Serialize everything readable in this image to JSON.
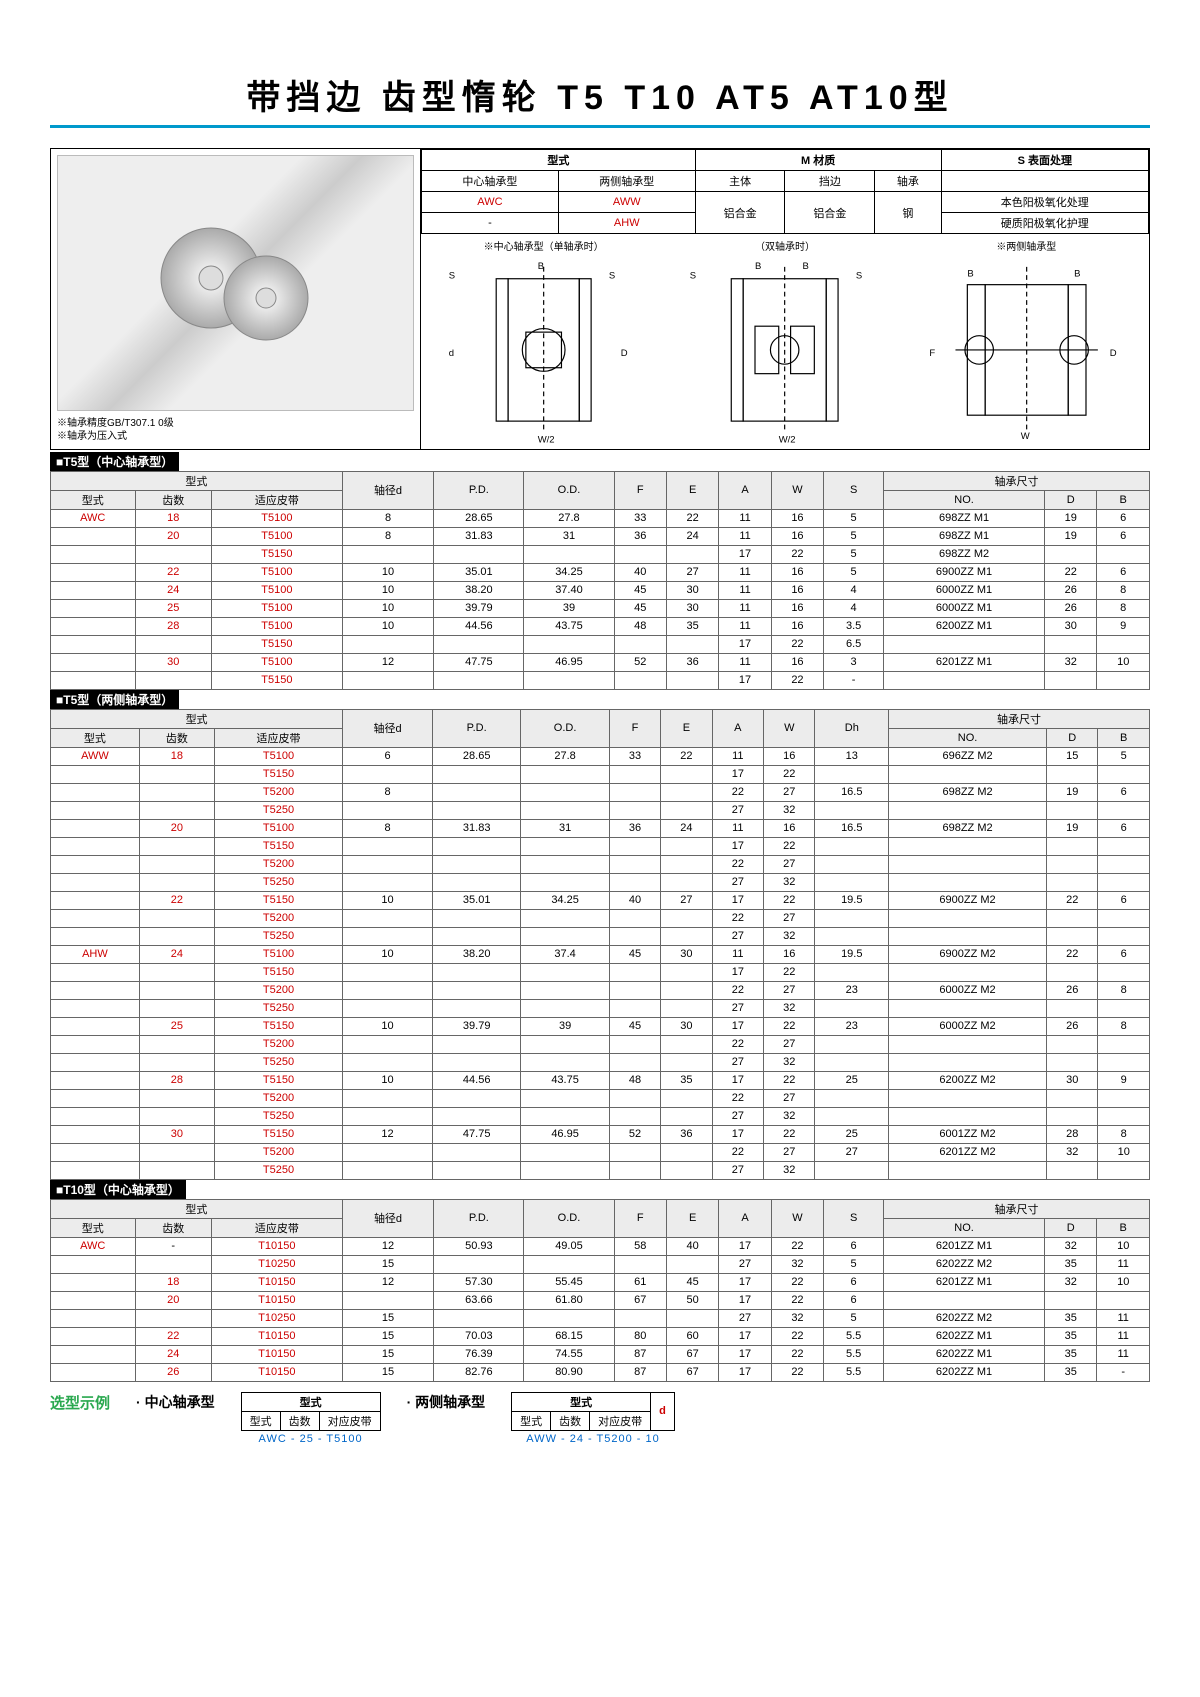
{
  "title": "带挡边 齿型惰轮 T5 T10 AT5 AT10型",
  "photo_notes": [
    "※轴承精度GB/T307.1  0级",
    "※轴承为压入式"
  ],
  "meta": {
    "cols": [
      "型式",
      "M 材质",
      "S 表面处理"
    ],
    "sub1": [
      "中心轴承型",
      "两侧轴承型",
      "主体",
      "挡边",
      "轴承",
      ""
    ],
    "rows": [
      [
        "AWC",
        "AWW",
        "铝合金",
        "铝合金",
        "钢",
        "本色阳极氧化处理"
      ],
      [
        "-",
        "AHW",
        "",
        "",
        "",
        "硬质阳极氧化护理"
      ]
    ]
  },
  "diagram_labels": [
    "※中心轴承型（单轴承时）",
    "（双轴承时）",
    "※两侧轴承型"
  ],
  "sections": [
    {
      "heading": "■T5型（中心轴承型）",
      "head1": [
        "型式",
        "",
        "",
        "",
        "",
        "",
        "",
        "",
        "",
        "轴承尺寸",
        "",
        ""
      ],
      "head2": [
        "型式",
        "齿数",
        "适应皮带",
        "轴径d",
        "P.D.",
        "O.D.",
        "F",
        "E",
        "A",
        "W",
        "S",
        "NO.",
        "D",
        "B"
      ],
      "rows": [
        [
          "AWC",
          "18",
          "T5100",
          "8",
          "28.65",
          "27.8",
          "33",
          "22",
          "11",
          "16",
          "5",
          "698ZZ  M1",
          "19",
          "6"
        ],
        [
          "",
          "20",
          "T5100",
          "8",
          "31.83",
          "31",
          "36",
          "24",
          "11",
          "16",
          "5",
          "698ZZ  M1",
          "19",
          "6"
        ],
        [
          "",
          "",
          "T5150",
          "",
          "",
          "",
          "",
          "",
          "17",
          "22",
          "5",
          "698ZZ  M2",
          "",
          ""
        ],
        [
          "",
          "22",
          "T5100",
          "10",
          "35.01",
          "34.25",
          "40",
          "27",
          "11",
          "16",
          "5",
          "6900ZZ M1",
          "22",
          "6"
        ],
        [
          "",
          "24",
          "T5100",
          "10",
          "38.20",
          "37.40",
          "45",
          "30",
          "11",
          "16",
          "4",
          "6000ZZ M1",
          "26",
          "8"
        ],
        [
          "",
          "25",
          "T5100",
          "10",
          "39.79",
          "39",
          "45",
          "30",
          "11",
          "16",
          "4",
          "6000ZZ M1",
          "26",
          "8"
        ],
        [
          "",
          "28",
          "T5100",
          "10",
          "44.56",
          "43.75",
          "48",
          "35",
          "11",
          "16",
          "3.5",
          "6200ZZ M1",
          "30",
          "9"
        ],
        [
          "",
          "",
          "T5150",
          "",
          "",
          "",
          "",
          "",
          "17",
          "22",
          "6.5",
          "",
          "",
          ""
        ],
        [
          "",
          "30",
          "T5100",
          "12",
          "47.75",
          "46.95",
          "52",
          "36",
          "11",
          "16",
          "3",
          "6201ZZ M1",
          "32",
          "10"
        ],
        [
          "",
          "",
          "T5150",
          "",
          "",
          "",
          "",
          "",
          "17",
          "22",
          "-",
          "",
          "",
          ""
        ]
      ]
    },
    {
      "heading": "■T5型（两侧轴承型）",
      "head2": [
        "型式",
        "齿数",
        "适应皮带",
        "轴径d",
        "P.D.",
        "O.D.",
        "F",
        "E",
        "A",
        "W",
        "Dh",
        "NO.",
        "D",
        "B"
      ],
      "rows": [
        [
          "AWW",
          "18",
          "T5100",
          "6",
          "28.65",
          "27.8",
          "33",
          "22",
          "11",
          "16",
          "13",
          "696ZZ  M2",
          "15",
          "5"
        ],
        [
          "",
          "",
          "T5150",
          "",
          "",
          "",
          "",
          "",
          "17",
          "22",
          "",
          "",
          "",
          ""
        ],
        [
          "",
          "",
          "T5200",
          "8",
          "",
          "",
          "",
          "",
          "22",
          "27",
          "16.5",
          "698ZZ  M2",
          "19",
          "6"
        ],
        [
          "",
          "",
          "T5250",
          "",
          "",
          "",
          "",
          "",
          "27",
          "32",
          "",
          "",
          "",
          ""
        ],
        [
          "",
          "20",
          "T5100",
          "8",
          "31.83",
          "31",
          "36",
          "24",
          "11",
          "16",
          "16.5",
          "698ZZ  M2",
          "19",
          "6"
        ],
        [
          "",
          "",
          "T5150",
          "",
          "",
          "",
          "",
          "",
          "17",
          "22",
          "",
          "",
          "",
          ""
        ],
        [
          "",
          "",
          "T5200",
          "",
          "",
          "",
          "",
          "",
          "22",
          "27",
          "",
          "",
          "",
          ""
        ],
        [
          "",
          "",
          "T5250",
          "",
          "",
          "",
          "",
          "",
          "27",
          "32",
          "",
          "",
          "",
          ""
        ],
        [
          "",
          "22",
          "T5150",
          "10",
          "35.01",
          "34.25",
          "40",
          "27",
          "17",
          "22",
          "19.5",
          "6900ZZ M2",
          "22",
          "6"
        ],
        [
          "",
          "",
          "T5200",
          "",
          "",
          "",
          "",
          "",
          "22",
          "27",
          "",
          "",
          "",
          ""
        ],
        [
          "",
          "",
          "T5250",
          "",
          "",
          "",
          "",
          "",
          "27",
          "32",
          "",
          "",
          "",
          ""
        ],
        [
          "AHW",
          "24",
          "T5100",
          "10",
          "38.20",
          "37.4",
          "45",
          "30",
          "11",
          "16",
          "19.5",
          "6900ZZ M2",
          "22",
          "6"
        ],
        [
          "",
          "",
          "T5150",
          "",
          "",
          "",
          "",
          "",
          "17",
          "22",
          "",
          "",
          "",
          ""
        ],
        [
          "",
          "",
          "T5200",
          "",
          "",
          "",
          "",
          "",
          "22",
          "27",
          "23",
          "6000ZZ M2",
          "26",
          "8"
        ],
        [
          "",
          "",
          "T5250",
          "",
          "",
          "",
          "",
          "",
          "27",
          "32",
          "",
          "",
          "",
          ""
        ],
        [
          "",
          "25",
          "T5150",
          "10",
          "39.79",
          "39",
          "45",
          "30",
          "17",
          "22",
          "23",
          "6000ZZ M2",
          "26",
          "8"
        ],
        [
          "",
          "",
          "T5200",
          "",
          "",
          "",
          "",
          "",
          "22",
          "27",
          "",
          "",
          "",
          ""
        ],
        [
          "",
          "",
          "T5250",
          "",
          "",
          "",
          "",
          "",
          "27",
          "32",
          "",
          "",
          "",
          ""
        ],
        [
          "",
          "28",
          "T5150",
          "10",
          "44.56",
          "43.75",
          "48",
          "35",
          "17",
          "22",
          "25",
          "6200ZZ M2",
          "30",
          "9"
        ],
        [
          "",
          "",
          "T5200",
          "",
          "",
          "",
          "",
          "",
          "22",
          "27",
          "",
          "",
          "",
          ""
        ],
        [
          "",
          "",
          "T5250",
          "",
          "",
          "",
          "",
          "",
          "27",
          "32",
          "",
          "",
          "",
          ""
        ],
        [
          "",
          "30",
          "T5150",
          "12",
          "47.75",
          "46.95",
          "52",
          "36",
          "17",
          "22",
          "25",
          "6001ZZ M2",
          "28",
          "8"
        ],
        [
          "",
          "",
          "T5200",
          "",
          "",
          "",
          "",
          "",
          "22",
          "27",
          "27",
          "6201ZZ M2",
          "32",
          "10"
        ],
        [
          "",
          "",
          "T5250",
          "",
          "",
          "",
          "",
          "",
          "27",
          "32",
          "",
          "",
          "",
          ""
        ]
      ]
    },
    {
      "heading": "■T10型（中心轴承型）",
      "head2": [
        "型式",
        "齿数",
        "适应皮带",
        "轴径d",
        "P.D.",
        "O.D.",
        "F",
        "E",
        "A",
        "W",
        "S",
        "NO.",
        "D",
        "B"
      ],
      "rows": [
        [
          "AWC",
          "-",
          "T10150",
          "12",
          "50.93",
          "49.05",
          "58",
          "40",
          "17",
          "22",
          "6",
          "6201ZZ M1",
          "32",
          "10"
        ],
        [
          "",
          "",
          "T10250",
          "15",
          "",
          "",
          "",
          "",
          "27",
          "32",
          "5",
          "6202ZZ M2",
          "35",
          "11"
        ],
        [
          "",
          "18",
          "T10150",
          "12",
          "57.30",
          "55.45",
          "61",
          "45",
          "17",
          "22",
          "6",
          "6201ZZ M1",
          "32",
          "10"
        ],
        [
          "",
          "20",
          "T10150",
          "",
          "63.66",
          "61.80",
          "67",
          "50",
          "17",
          "22",
          "6",
          "",
          "",
          ""
        ],
        [
          "",
          "",
          "T10250",
          "15",
          "",
          "",
          "",
          "",
          "27",
          "32",
          "5",
          "6202ZZ M2",
          "35",
          "11"
        ],
        [
          "",
          "22",
          "T10150",
          "15",
          "70.03",
          "68.15",
          "80",
          "60",
          "17",
          "22",
          "5.5",
          "6202ZZ M1",
          "35",
          "11"
        ],
        [
          "",
          "24",
          "T10150",
          "15",
          "76.39",
          "74.55",
          "87",
          "67",
          "17",
          "22",
          "5.5",
          "6202ZZ M1",
          "35",
          "11"
        ],
        [
          "",
          "26",
          "T10150",
          "15",
          "82.76",
          "80.90",
          "87",
          "67",
          "17",
          "22",
          "5.5",
          "6202ZZ M1",
          "35",
          "-"
        ]
      ]
    }
  ],
  "example": {
    "title": "选型示例",
    "left_label": "· 中心轴承型",
    "right_label": "· 两侧轴承型",
    "mini_head": [
      "型式",
      "齿数",
      "对应皮带"
    ],
    "mini_head_d": "d",
    "left_code": "AWC  -  25  -  T5100",
    "right_code": "AWW  -  24  -  T5200 -  10"
  },
  "colors": {
    "accent": "#0099cc",
    "red": "#c00",
    "green": "#2aa84f",
    "blue": "#0066c8"
  }
}
